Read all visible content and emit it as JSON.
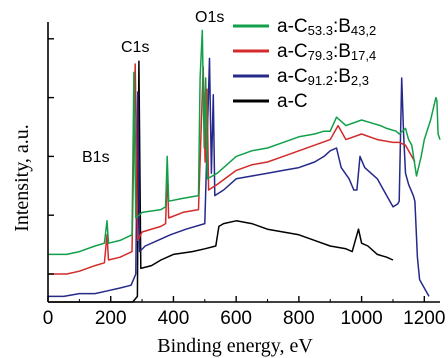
{
  "chart_data": {
    "type": "line",
    "xlabel": "Binding energy, eV",
    "ylabel": "Intensity, a.u.",
    "xlim": [
      0,
      1250
    ],
    "ylim": [
      0,
      100
    ],
    "x_ticks": [
      "0",
      "200",
      "400",
      "600",
      "800",
      "1000",
      "1200"
    ],
    "x_tick_values": [
      0,
      200,
      400,
      600,
      800,
      1000,
      1200
    ],
    "grid": false,
    "legend_position": "top-right",
    "annotations": [
      {
        "text": "B1s",
        "x": 190,
        "y": 48
      },
      {
        "text": "C1s",
        "x": 285,
        "y": 85
      },
      {
        "text": "O1s",
        "x": 531,
        "y": 96
      }
    ],
    "series": [
      {
        "name": "a-C53.3:B43,2",
        "legend": {
          "base": "a-C",
          "sub1": "53.3",
          "mid": ":B",
          "sub2": "43,2"
        },
        "color": "#11a049",
        "points": [
          [
            0,
            17
          ],
          [
            60,
            17
          ],
          [
            100,
            18
          ],
          [
            150,
            20
          ],
          [
            180,
            21
          ],
          [
            188,
            29
          ],
          [
            193,
            21
          ],
          [
            230,
            22
          ],
          [
            268,
            24
          ],
          [
            274,
            82
          ],
          [
            280,
            30
          ],
          [
            300,
            32
          ],
          [
            360,
            33
          ],
          [
            375,
            34
          ],
          [
            380,
            52
          ],
          [
            385,
            36
          ],
          [
            430,
            37
          ],
          [
            480,
            38
          ],
          [
            485,
            80
          ],
          [
            492,
            97
          ],
          [
            498,
            55
          ],
          [
            503,
            80
          ],
          [
            508,
            44
          ],
          [
            540,
            46
          ],
          [
            600,
            52
          ],
          [
            650,
            54
          ],
          [
            700,
            55
          ],
          [
            750,
            57
          ],
          [
            800,
            59
          ],
          [
            850,
            60
          ],
          [
            880,
            61
          ],
          [
            900,
            61
          ],
          [
            920,
            66
          ],
          [
            950,
            63
          ],
          [
            1000,
            65
          ],
          [
            1030,
            64
          ],
          [
            1060,
            63
          ],
          [
            1080,
            62
          ],
          [
            1110,
            61
          ],
          [
            1120,
            60
          ],
          [
            1140,
            62
          ],
          [
            1150,
            58
          ],
          [
            1160,
            56
          ],
          [
            1175,
            45
          ],
          [
            1190,
            52
          ],
          [
            1200,
            58
          ],
          [
            1220,
            65
          ],
          [
            1237,
            73
          ],
          [
            1240,
            72
          ],
          [
            1244,
            60
          ],
          [
            1250,
            58
          ]
        ]
      },
      {
        "name": "a-C79.3:B17,4",
        "legend": {
          "base": "a-C",
          "sub1": "79.3",
          "mid": ":B",
          "sub2": "17,4"
        },
        "color": "#d42a2a",
        "points": [
          [
            0,
            10
          ],
          [
            60,
            10
          ],
          [
            100,
            11
          ],
          [
            150,
            13
          ],
          [
            180,
            14
          ],
          [
            188,
            24
          ],
          [
            193,
            15
          ],
          [
            230,
            16
          ],
          [
            268,
            18
          ],
          [
            278,
            85
          ],
          [
            286,
            22
          ],
          [
            300,
            25
          ],
          [
            360,
            27
          ],
          [
            375,
            28
          ],
          [
            380,
            46
          ],
          [
            385,
            30
          ],
          [
            430,
            32
          ],
          [
            480,
            33
          ],
          [
            495,
            84
          ],
          [
            501,
            50
          ],
          [
            507,
            76
          ],
          [
            512,
            40
          ],
          [
            540,
            42
          ],
          [
            600,
            47
          ],
          [
            650,
            49
          ],
          [
            700,
            50
          ],
          [
            750,
            52
          ],
          [
            800,
            54
          ],
          [
            850,
            56
          ],
          [
            900,
            58
          ],
          [
            925,
            63
          ],
          [
            950,
            58
          ],
          [
            1000,
            60
          ],
          [
            1050,
            58
          ],
          [
            1100,
            57
          ],
          [
            1120,
            57
          ],
          [
            1140,
            56
          ],
          [
            1160,
            52
          ],
          [
            1170,
            50
          ]
        ]
      },
      {
        "name": "a-C91.2:B2,3",
        "legend": {
          "base": "a-C",
          "sub1": "91.2",
          "mid": ":B",
          "sub2": "2,3"
        },
        "color": "#25298a",
        "points": [
          [
            0,
            2
          ],
          [
            50,
            2
          ],
          [
            100,
            3
          ],
          [
            150,
            3
          ],
          [
            190,
            4
          ],
          [
            230,
            5
          ],
          [
            265,
            6
          ],
          [
            280,
            10
          ],
          [
            286,
            75
          ],
          [
            292,
            18
          ],
          [
            310,
            20
          ],
          [
            350,
            22
          ],
          [
            390,
            24
          ],
          [
            440,
            26
          ],
          [
            500,
            28
          ],
          [
            515,
            87
          ],
          [
            521,
            46
          ],
          [
            527,
            74
          ],
          [
            532,
            38
          ],
          [
            560,
            40
          ],
          [
            600,
            44
          ],
          [
            650,
            45
          ],
          [
            700,
            46
          ],
          [
            750,
            47
          ],
          [
            800,
            48
          ],
          [
            850,
            50
          ],
          [
            880,
            52
          ],
          [
            900,
            54
          ],
          [
            920,
            55
          ],
          [
            935,
            48
          ],
          [
            960,
            44
          ],
          [
            975,
            40
          ],
          [
            985,
            40
          ],
          [
            995,
            52
          ],
          [
            1010,
            48
          ],
          [
            1050,
            44
          ],
          [
            1080,
            38
          ],
          [
            1100,
            34
          ],
          [
            1115,
            35
          ],
          [
            1120,
            36
          ],
          [
            1128,
            80
          ],
          [
            1134,
            60
          ],
          [
            1140,
            46
          ],
          [
            1150,
            42
          ],
          [
            1165,
            38
          ],
          [
            1170,
            36
          ],
          [
            1178,
            16
          ],
          [
            1185,
            8
          ],
          [
            1200,
            5
          ],
          [
            1215,
            2
          ]
        ]
      },
      {
        "name": "a-C",
        "legend": {
          "base": "a-C",
          "sub1": "",
          "mid": "",
          "sub2": ""
        },
        "color": "#000000",
        "points": [
          [
            0,
            0
          ],
          [
            60,
            0
          ],
          [
            100,
            0
          ],
          [
            150,
            0
          ],
          [
            190,
            0
          ],
          [
            230,
            0
          ],
          [
            270,
            0
          ],
          [
            285,
            2
          ],
          [
            290,
            86
          ],
          [
            296,
            12
          ],
          [
            330,
            13
          ],
          [
            360,
            15
          ],
          [
            400,
            17
          ],
          [
            460,
            18
          ],
          [
            500,
            19
          ],
          [
            535,
            20
          ],
          [
            545,
            27
          ],
          [
            560,
            28
          ],
          [
            600,
            29
          ],
          [
            650,
            28
          ],
          [
            700,
            26
          ],
          [
            750,
            25
          ],
          [
            800,
            24
          ],
          [
            850,
            22
          ],
          [
            900,
            20
          ],
          [
            950,
            19
          ],
          [
            970,
            18
          ],
          [
            980,
            22
          ],
          [
            990,
            26
          ],
          [
            1000,
            21
          ],
          [
            1020,
            20
          ],
          [
            1050,
            17
          ],
          [
            1080,
            16
          ],
          [
            1100,
            15
          ]
        ]
      }
    ]
  }
}
